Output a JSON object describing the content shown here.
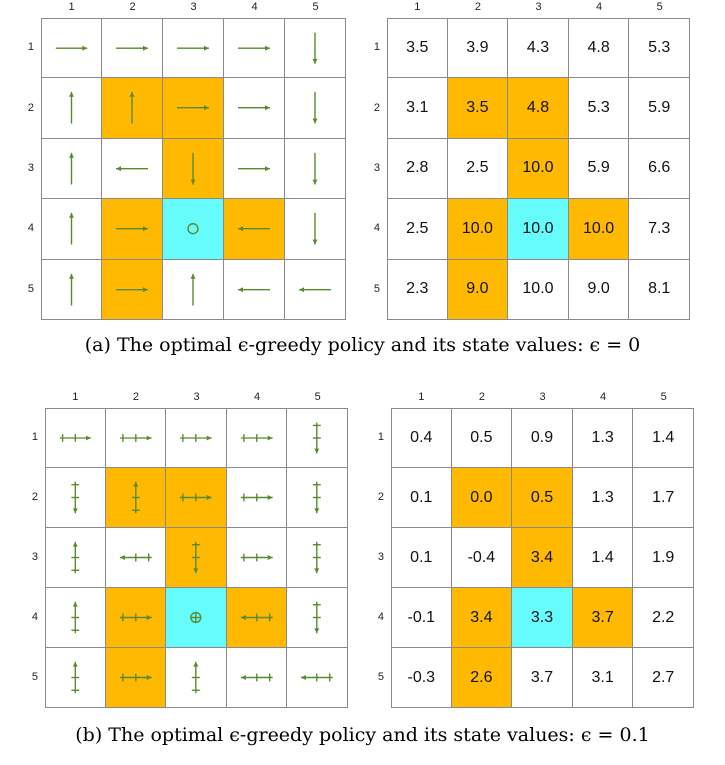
{
  "colors": {
    "forbidden": "#ffb900",
    "target": "#66fcfc",
    "arrow": "#5a8a2e",
    "grid": "#8a8a8a"
  },
  "axis_labels": [
    "1",
    "2",
    "3",
    "4",
    "5"
  ],
  "panels": [
    {
      "caption": "(a) The optimal ϵ-greedy policy and its state values: ϵ = 0",
      "cell_types": [
        [
          "n",
          "n",
          "n",
          "n",
          "n"
        ],
        [
          "n",
          "f",
          "f",
          "n",
          "n"
        ],
        [
          "n",
          "n",
          "f",
          "n",
          "n"
        ],
        [
          "n",
          "f",
          "t",
          "f",
          "n"
        ],
        [
          "n",
          "f",
          "n",
          "n",
          "n"
        ]
      ],
      "policy": [
        [
          "right",
          "right",
          "right",
          "right",
          "down"
        ],
        [
          "up",
          "up",
          "right",
          "right",
          "down"
        ],
        [
          "up",
          "left",
          "down",
          "right",
          "down"
        ],
        [
          "up",
          "right",
          "stay",
          "left",
          "down"
        ],
        [
          "up",
          "right",
          "up",
          "left",
          "left"
        ]
      ],
      "policy_style": "single",
      "values": [
        [
          "3.5",
          "3.9",
          "4.3",
          "4.8",
          "5.3"
        ],
        [
          "3.1",
          "3.5",
          "4.8",
          "5.3",
          "5.9"
        ],
        [
          "2.8",
          "2.5",
          "10.0",
          "5.9",
          "6.6"
        ],
        [
          "2.5",
          "10.0",
          "10.0",
          "10.0",
          "7.3"
        ],
        [
          "2.3",
          "9.0",
          "10.0",
          "9.0",
          "8.1"
        ]
      ]
    },
    {
      "caption": "(b) The optimal ϵ-greedy policy and its state values: ϵ = 0.1",
      "cell_types": [
        [
          "n",
          "n",
          "n",
          "n",
          "n"
        ],
        [
          "n",
          "f",
          "f",
          "n",
          "n"
        ],
        [
          "n",
          "n",
          "f",
          "n",
          "n"
        ],
        [
          "n",
          "f",
          "t",
          "f",
          "n"
        ],
        [
          "n",
          "f",
          "n",
          "n",
          "n"
        ]
      ],
      "policy": [
        [
          "right",
          "right",
          "right",
          "right",
          "down"
        ],
        [
          "down",
          "up",
          "right",
          "right",
          "down"
        ],
        [
          "up",
          "left",
          "down",
          "right",
          "down"
        ],
        [
          "up",
          "right",
          "stay",
          "left",
          "down"
        ],
        [
          "up",
          "right",
          "up",
          "left",
          "left"
        ]
      ],
      "policy_style": "eps",
      "values": [
        [
          "0.4",
          "0.5",
          "0.9",
          "1.3",
          "1.4"
        ],
        [
          "0.1",
          "0.0",
          "0.5",
          "1.3",
          "1.7"
        ],
        [
          "0.1",
          "-0.4",
          "3.4",
          "1.4",
          "1.9"
        ],
        [
          "-0.1",
          "3.4",
          "3.3",
          "3.7",
          "2.2"
        ],
        [
          "-0.3",
          "2.6",
          "3.7",
          "3.1",
          "2.7"
        ]
      ]
    }
  ]
}
